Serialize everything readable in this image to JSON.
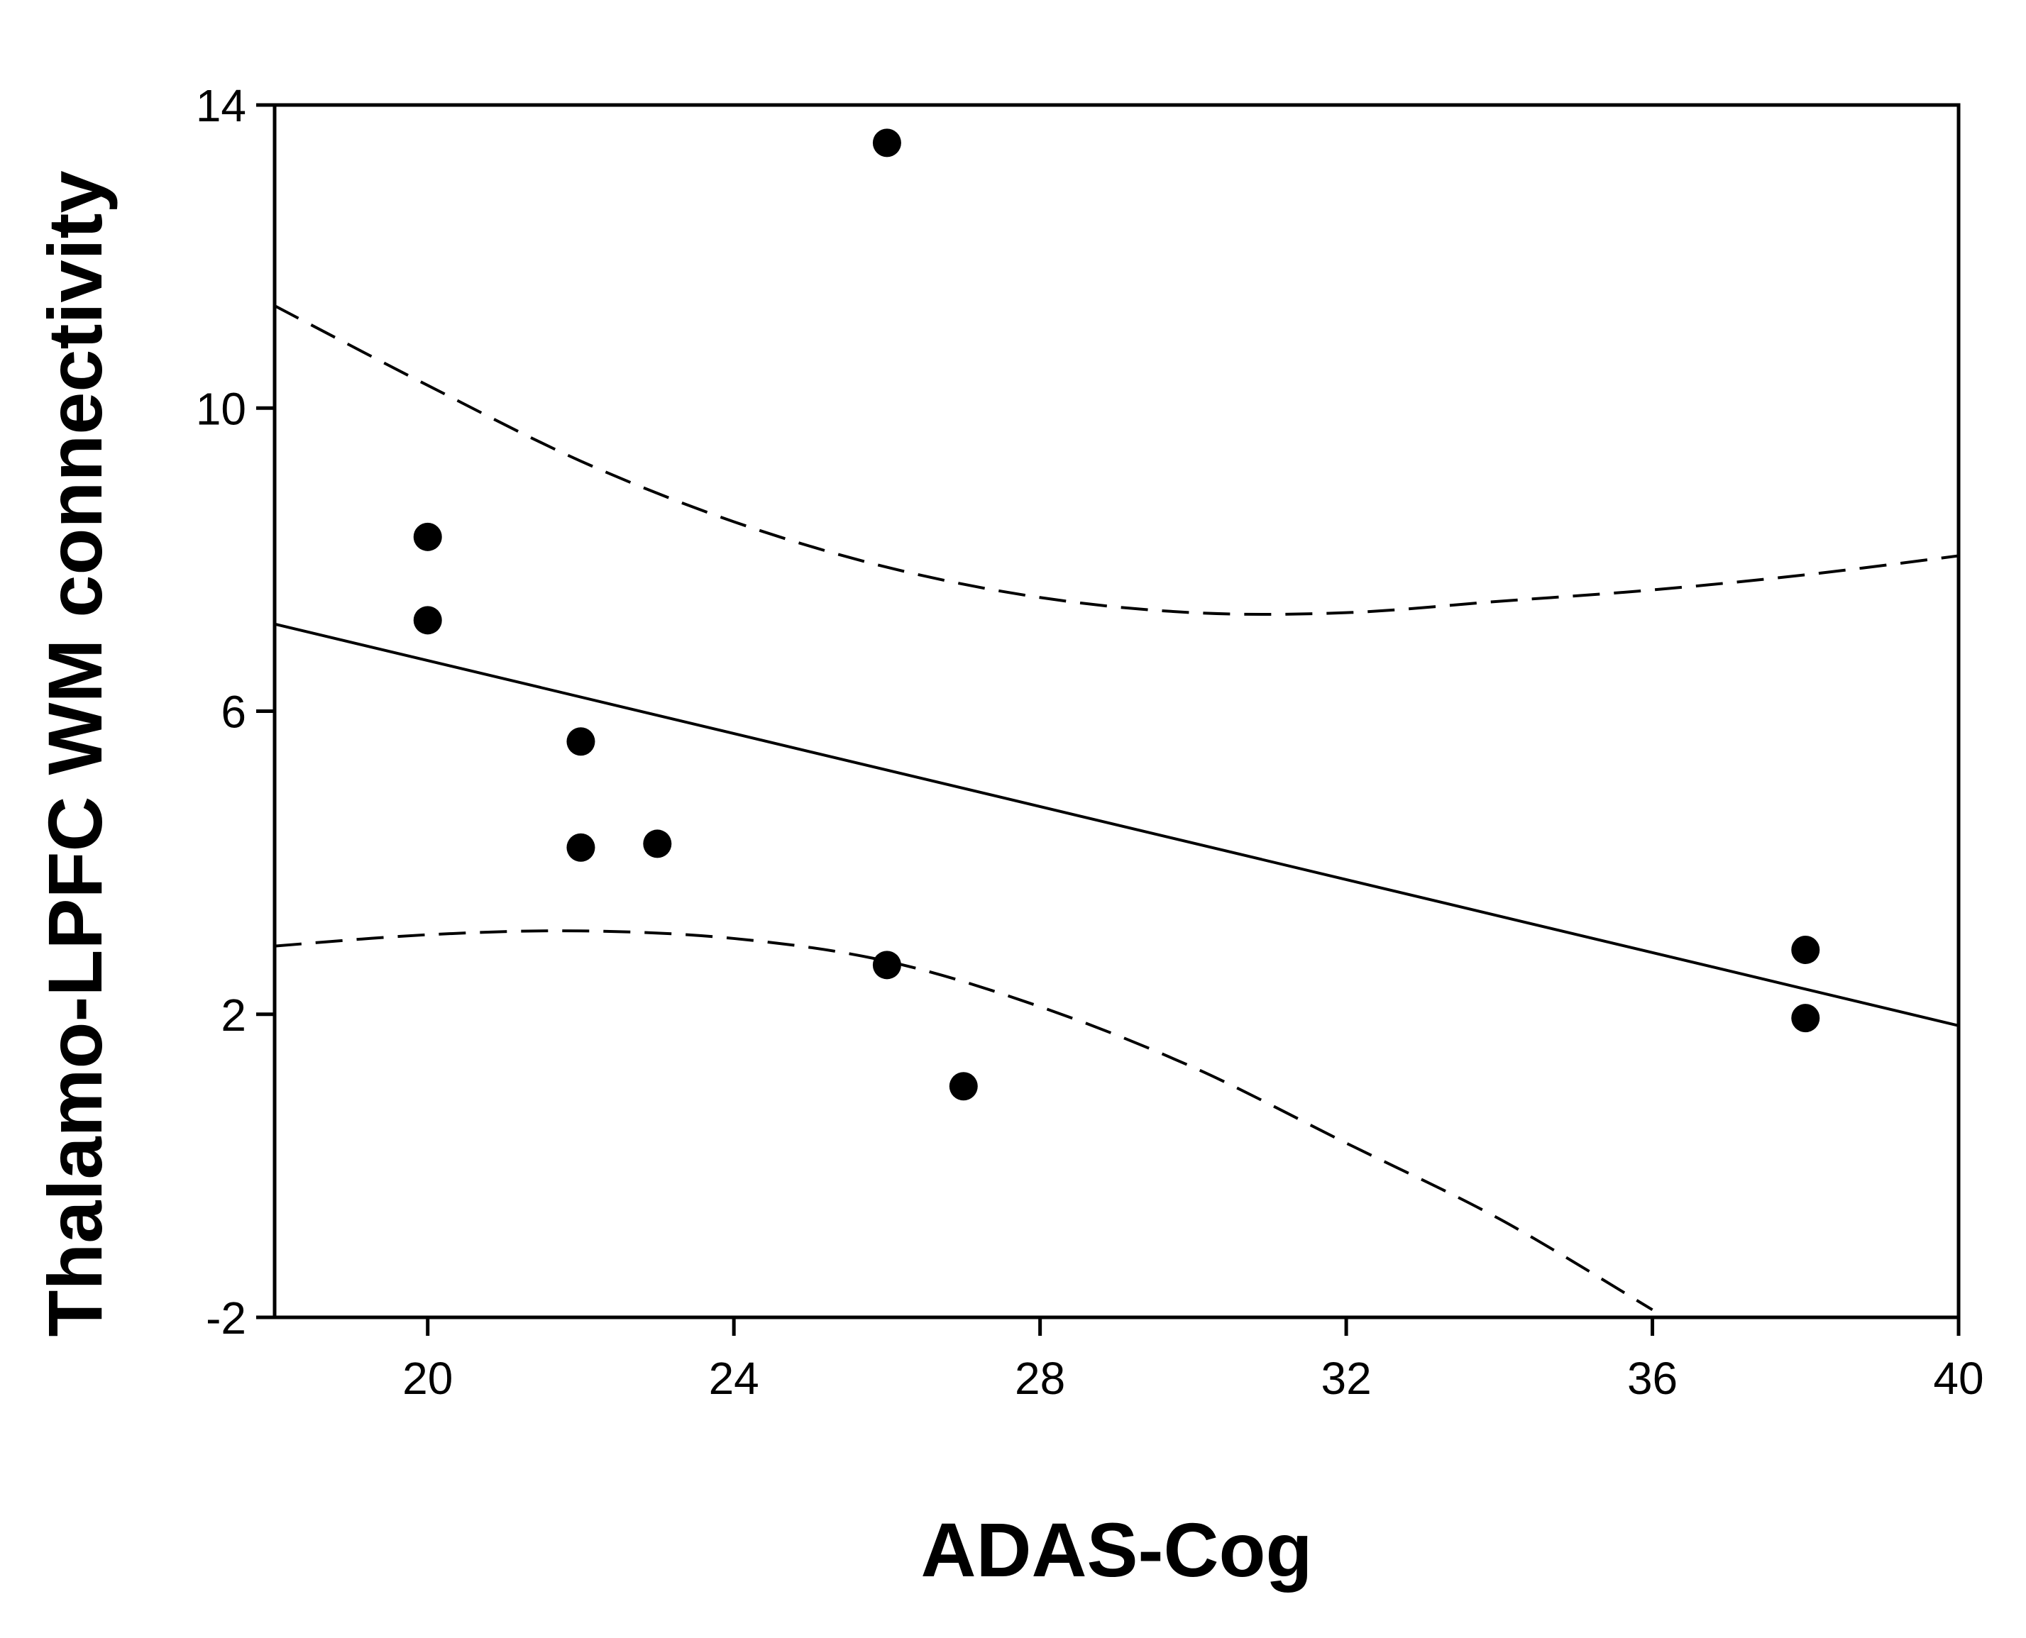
{
  "chart_data": {
    "type": "scatter",
    "title": "",
    "xlabel": "ADAS-Cog",
    "ylabel": "Thalamo-LPFC WM connectivity",
    "xlim": [
      18,
      40
    ],
    "ylim": [
      -2,
      14
    ],
    "x_ticks": [
      20,
      24,
      28,
      32,
      36,
      40
    ],
    "y_ticks": [
      -2,
      2,
      6,
      10,
      14
    ],
    "grid": false,
    "legend": "none",
    "points": [
      {
        "x": 20,
        "y": 8.3
      },
      {
        "x": 20,
        "y": 7.2
      },
      {
        "x": 22,
        "y": 5.6
      },
      {
        "x": 22,
        "y": 4.2
      },
      {
        "x": 23,
        "y": 4.25
      },
      {
        "x": 26,
        "y": 13.5
      },
      {
        "x": 26,
        "y": 2.65
      },
      {
        "x": 27,
        "y": 1.05
      },
      {
        "x": 38,
        "y": 2.85
      },
      {
        "x": 38,
        "y": 1.95
      }
    ],
    "regression_line": {
      "x": [
        18,
        40
      ],
      "y": [
        7.15,
        1.85
      ],
      "style": "solid"
    },
    "confidence_upper": {
      "style": "dashed",
      "x": [
        18,
        20,
        22,
        24,
        26,
        28,
        30,
        32,
        34,
        36,
        38,
        40
      ],
      "y": [
        11.35,
        10.3,
        9.3,
        8.5,
        7.9,
        7.5,
        7.3,
        7.3,
        7.45,
        7.6,
        7.8,
        8.05
      ]
    },
    "confidence_lower": {
      "style": "dashed",
      "x": [
        18,
        20,
        22,
        24,
        26,
        28,
        30,
        32,
        34,
        36
      ],
      "y": [
        2.9,
        3.05,
        3.1,
        3.0,
        2.7,
        2.1,
        1.3,
        0.3,
        -0.7,
        -1.9
      ]
    },
    "colors": {
      "marker": "#000000",
      "line": "#000000",
      "axis": "#000000"
    }
  }
}
